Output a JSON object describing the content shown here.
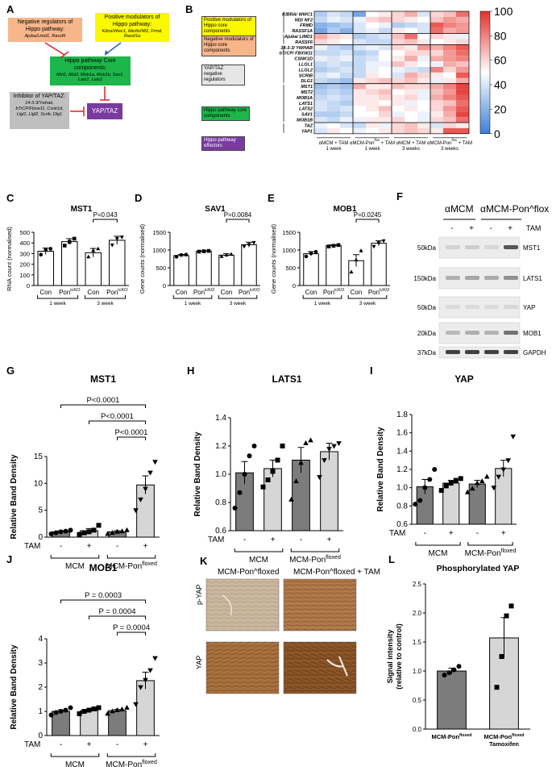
{
  "panels": {
    "A": "A",
    "B": "B",
    "C": "C",
    "D": "D",
    "E": "E",
    "F": "F",
    "G": "G",
    "H": "H",
    "I": "I",
    "J": "J",
    "K": "K",
    "L": "L"
  },
  "colors": {
    "heat_low": "#3b7fd8",
    "heat_mid": "#ffffff",
    "heat_high": "#e4312b",
    "bar_dark": "#7c7c7c",
    "bar_light": "#d6d6d6",
    "yellow": "#fbf900",
    "orange": "#f7b58a",
    "green": "#1cb64a",
    "grey": "#bfbfbf",
    "purple": "#7a3aa0",
    "red_arrow": "#e02020"
  },
  "diagram_a": {
    "neg_reg_title": "Negative regulators of Hippo pathway:",
    "neg_reg_genes": "Ajuba/Limd1, Rassf6",
    "pos_mod_title": "Positive modulators of Hippo pathway:",
    "pos_mod_genes": "Kibra/Wwc1, Merlin/Nf2, Frmd, Rassf1a",
    "core_title": "Hippo pathway Core components:",
    "core_genes": "Mst1, Mst2, Mob1a, Mob1b, Sav1, Lats1, Lats2",
    "inhib_title": "Inhibitor of YAP/TAZ:",
    "inhib_genes": "14-3-3/Ywhab, bTrCP/Fbxw11, Csnk1d, Llgl1, Llgl2, Scrib, Dlg1",
    "yap_taz": "YAP/TAZ"
  },
  "heatmap_b": {
    "genes": [
      "KIBRA/ WWC1",
      "Nf2/ NF2",
      "FRMD",
      "RASSF1A",
      "Ajuba/ LIMD1",
      "RASSF6",
      "14-3-3/ YWHAB",
      "bTrCP/ FBXW11",
      "CSNK1D",
      "LLGL1",
      "LLGL2",
      "SCRIB",
      "DLG1",
      "MST1",
      "MST2",
      "MOB1A",
      "LATS1",
      "LATS2",
      "SAV1",
      "MOB1B",
      "TAZ",
      "YAP1"
    ],
    "group_labels": [
      "Positive modulators of Hippo core components",
      "Negative modulators of Hippo core components",
      "YAP/TAZ negative regulators",
      "Hippo pathway core components",
      "Hippo pathway effectors"
    ],
    "conditions": [
      {
        "line1": "αMCM + TAM",
        "line2": "1 week"
      },
      {
        "line1": "αMCM-Pon^flox + TAM",
        "line2": "1 week"
      },
      {
        "line1": "αMCM + TAM",
        "line2": "3 weeks"
      },
      {
        "line1": "αMCM-Pon^flox + TAM",
        "line2": "3 weeks"
      }
    ],
    "colorbar_ticks": [
      "100",
      "80",
      "60",
      "40",
      "20",
      "0"
    ],
    "values": [
      [
        30,
        40,
        35,
        15,
        50,
        55,
        60,
        70,
        40,
        60,
        65,
        85
      ],
      [
        35,
        45,
        40,
        45,
        60,
        65,
        60,
        55,
        50,
        65,
        75,
        70
      ],
      [
        20,
        25,
        30,
        40,
        50,
        45,
        30,
        35,
        40,
        90,
        80,
        75
      ],
      [
        15,
        30,
        20,
        40,
        45,
        35,
        55,
        50,
        40,
        85,
        70,
        75
      ],
      [
        70,
        60,
        55,
        30,
        35,
        40,
        65,
        85,
        50,
        60,
        55,
        45
      ],
      [
        60,
        55,
        50,
        40,
        35,
        35,
        60,
        65,
        55,
        50,
        55,
        60
      ],
      [
        45,
        35,
        30,
        40,
        45,
        40,
        60,
        55,
        75,
        70,
        80,
        90
      ],
      [
        35,
        35,
        40,
        30,
        35,
        50,
        50,
        60,
        60,
        60,
        75,
        85
      ],
      [
        45,
        40,
        45,
        35,
        40,
        50,
        55,
        70,
        45,
        70,
        75,
        80
      ],
      [
        35,
        40,
        35,
        35,
        45,
        45,
        65,
        55,
        50,
        45,
        70,
        65
      ],
      [
        30,
        35,
        40,
        35,
        45,
        50,
        45,
        40,
        35,
        80,
        60,
        75
      ],
      [
        40,
        45,
        35,
        35,
        55,
        50,
        40,
        70,
        60,
        55,
        50,
        90
      ],
      [
        35,
        30,
        25,
        55,
        60,
        65,
        60,
        65,
        55,
        45,
        55,
        70
      ],
      [
        25,
        30,
        25,
        70,
        55,
        55,
        65,
        60,
        60,
        70,
        80,
        95
      ],
      [
        30,
        35,
        30,
        55,
        60,
        65,
        50,
        55,
        45,
        65,
        75,
        95
      ],
      [
        35,
        40,
        35,
        55,
        55,
        60,
        55,
        60,
        45,
        70,
        80,
        90
      ],
      [
        40,
        35,
        30,
        55,
        55,
        50,
        55,
        45,
        50,
        60,
        65,
        85
      ],
      [
        40,
        35,
        40,
        50,
        55,
        65,
        50,
        55,
        50,
        60,
        75,
        90
      ],
      [
        30,
        30,
        35,
        50,
        50,
        60,
        45,
        50,
        45,
        55,
        70,
        95
      ],
      [
        40,
        35,
        45,
        45,
        55,
        55,
        60,
        50,
        45,
        60,
        65,
        85
      ],
      [
        45,
        50,
        40,
        35,
        55,
        45,
        60,
        65,
        55,
        40,
        60,
        55
      ],
      [
        40,
        55,
        50,
        45,
        50,
        55,
        60,
        65,
        60,
        55,
        90,
        90
      ]
    ]
  },
  "chart_data": [
    {
      "id": "C",
      "type": "bar",
      "title": "MST1",
      "ylabel": "RNA count (normalised)",
      "ylim": [
        0,
        500
      ],
      "yticks": [
        0,
        100,
        200,
        300,
        400,
        500
      ],
      "categories": [
        "Con",
        "Pon^icKO",
        "Con",
        "Pon^icKO"
      ],
      "values": [
        322,
        412,
        308,
        425
      ],
      "errors": [
        30,
        28,
        40,
        38
      ],
      "points": [
        [
          290,
          335,
          345
        ],
        [
          375,
          410,
          440
        ],
        [
          270,
          330,
          345
        ],
        [
          380,
          440,
          455
        ]
      ],
      "markers": [
        "circle",
        "square",
        "triangle",
        "tri-down"
      ],
      "groups": [
        {
          "label": "1 week",
          "from": 0,
          "to": 1
        },
        {
          "label": "3 week",
          "from": 2,
          "to": 3
        }
      ],
      "comparisons": [
        {
          "from": 2,
          "to": 3,
          "label": "P=0.043"
        }
      ]
    },
    {
      "id": "D",
      "type": "bar",
      "title": "SAV1",
      "ylabel": "Gene counts (normalised)",
      "ylim": [
        0,
        1500
      ],
      "yticks": [
        0,
        500,
        1000,
        1500
      ],
      "categories": [
        "Con",
        "Pon^icKO",
        "Con",
        "Pon^icKO"
      ],
      "values": [
        845,
        965,
        855,
        1150
      ],
      "errors": [
        30,
        10,
        40,
        70
      ],
      "points": [
        [
          810,
          860,
          870
        ],
        [
          955,
          965,
          975
        ],
        [
          820,
          860,
          880
        ],
        [
          1100,
          1150,
          1210
        ]
      ],
      "markers": [
        "circle",
        "square",
        "triangle",
        "tri-down"
      ],
      "groups": [
        {
          "label": "1 week",
          "from": 0,
          "to": 1
        },
        {
          "label": "3 week",
          "from": 2,
          "to": 3
        }
      ],
      "comparisons": [
        {
          "from": 2,
          "to": 3,
          "label": "P=0.0084"
        }
      ]
    },
    {
      "id": "E",
      "type": "bar",
      "title": "MOB1",
      "ylabel": "Gene counts (normalised)",
      "ylim": [
        0,
        1500
      ],
      "yticks": [
        0,
        500,
        1000,
        1500
      ],
      "categories": [
        "Con",
        "Pon^icKO",
        "Con",
        "Pon^icKO"
      ],
      "values": [
        895,
        1125,
        700,
        1190
      ],
      "errors": [
        60,
        20,
        170,
        70
      ],
      "points": [
        [
          820,
          910,
          950
        ],
        [
          1100,
          1120,
          1140
        ],
        [
          380,
          720,
          980
        ],
        [
          1100,
          1200,
          1260
        ]
      ],
      "markers": [
        "circle",
        "square",
        "triangle",
        "tri-down"
      ],
      "groups": [
        {
          "label": "1 week",
          "from": 0,
          "to": 1
        },
        {
          "label": "3 week",
          "from": 2,
          "to": 3
        }
      ],
      "comparisons": [
        {
          "from": 2,
          "to": 3,
          "label": "P=0.0245"
        }
      ]
    },
    {
      "id": "G",
      "type": "bar",
      "title": "MST1",
      "ylabel": "Relative Band Density",
      "ylim": [
        0,
        15
      ],
      "yticks": [
        0,
        5,
        10,
        15
      ],
      "categories": [
        "-",
        "+",
        "-",
        "+"
      ],
      "values": [
        1.0,
        1.2,
        1.0,
        9.7
      ],
      "errors": [
        0.2,
        0.4,
        0.2,
        1.7
      ],
      "points": [
        [
          0.6,
          0.8,
          1.0,
          1.1,
          1.3
        ],
        [
          0.5,
          0.8,
          1.0,
          1.3,
          2.2
        ],
        [
          0.6,
          0.8,
          1.0,
          1.1,
          1.3
        ],
        [
          5.0,
          7.0,
          9.0,
          12.0,
          14.0
        ]
      ],
      "markers": [
        "circle",
        "square",
        "triangle",
        "tri-down"
      ],
      "row_label": "TAM",
      "groups": [
        {
          "label": "MCM",
          "from": 0,
          "to": 1
        },
        {
          "label": "MCM-Pon^floxed",
          "from": 2,
          "to": 3
        }
      ],
      "comparisons": [
        {
          "from": 0,
          "to": 3,
          "label": "P<0.0001"
        },
        {
          "from": 1,
          "to": 3,
          "label": "P<0.0001"
        },
        {
          "from": 2,
          "to": 3,
          "label": "P<0.0001"
        }
      ]
    },
    {
      "id": "H",
      "type": "bar",
      "title": "LATS1",
      "ylabel": "Relative Band Density",
      "ylim": [
        0.6,
        1.4
      ],
      "yticks": [
        0.6,
        0.8,
        1.0,
        1.2,
        1.4
      ],
      "categories": [
        "-",
        "+",
        "-",
        "+"
      ],
      "values": [
        1.01,
        1.04,
        1.1,
        1.16
      ],
      "errors": [
        0.08,
        0.06,
        0.09,
        0.06
      ],
      "points": [
        [
          0.76,
          0.87,
          1.0,
          1.13,
          1.2
        ],
        [
          0.91,
          0.96,
          1.02,
          1.1,
          1.2
        ],
        [
          0.82,
          0.95,
          1.08,
          1.22,
          1.24
        ],
        [
          0.98,
          1.1,
          1.18,
          1.2,
          1.22
        ]
      ],
      "markers": [
        "circle",
        "square",
        "triangle",
        "tri-down"
      ],
      "row_label": "TAM",
      "groups": [
        {
          "label": "MCM",
          "from": 0,
          "to": 1
        },
        {
          "label": "MCM-Pon^floxed",
          "from": 2,
          "to": 3
        }
      ],
      "comparisons": []
    },
    {
      "id": "I",
      "type": "bar",
      "title": "YAP",
      "ylabel": "Relative Band Density",
      "ylim": [
        0.6,
        1.8
      ],
      "yticks": [
        0.6,
        0.8,
        1.0,
        1.2,
        1.4,
        1.6,
        1.8
      ],
      "categories": [
        "-",
        "+",
        "-",
        "+"
      ],
      "values": [
        1.01,
        1.05,
        1.04,
        1.21
      ],
      "errors": [
        0.08,
        0.03,
        0.04,
        0.09
      ],
      "points": [
        [
          0.82,
          0.86,
          1.0,
          1.09,
          1.2
        ],
        [
          0.97,
          1.02,
          1.05,
          1.08,
          1.1
        ],
        [
          0.95,
          0.99,
          1.05,
          1.07,
          1.12
        ],
        [
          1.0,
          1.12,
          1.2,
          1.3,
          1.56
        ]
      ],
      "markers": [
        "circle",
        "square",
        "triangle",
        "tri-down"
      ],
      "row_label": "TAM",
      "groups": [
        {
          "label": "MCM",
          "from": 0,
          "to": 1
        },
        {
          "label": "MCM-Pon^floxed",
          "from": 2,
          "to": 3
        }
      ],
      "comparisons": []
    },
    {
      "id": "J",
      "type": "bar",
      "title": "MOB1",
      "ylabel": "Relative Band Density",
      "ylim": [
        0,
        4
      ],
      "yticks": [
        0,
        1,
        2,
        3,
        4
      ],
      "categories": [
        "-",
        "+",
        "-",
        "+"
      ],
      "values": [
        1.0,
        1.03,
        1.03,
        2.27
      ],
      "errors": [
        0.06,
        0.05,
        0.05,
        0.35
      ],
      "points": [
        [
          0.85,
          0.95,
          1.0,
          1.05,
          1.15
        ],
        [
          0.9,
          1.0,
          1.05,
          1.1,
          1.15
        ],
        [
          0.9,
          1.0,
          1.05,
          1.08,
          1.15
        ],
        [
          1.3,
          2.0,
          2.3,
          2.7,
          3.2
        ]
      ],
      "markers": [
        "circle",
        "square",
        "triangle",
        "tri-down"
      ],
      "row_label": "TAM",
      "groups": [
        {
          "label": "MCM",
          "from": 0,
          "to": 1
        },
        {
          "label": "MCM-Pon^floxed",
          "from": 2,
          "to": 3
        }
      ],
      "comparisons": [
        {
          "from": 0,
          "to": 3,
          "label": "P = 0.0003"
        },
        {
          "from": 1,
          "to": 3,
          "label": "P = 0.0004"
        },
        {
          "from": 2,
          "to": 3,
          "label": "P = 0.0004"
        }
      ]
    },
    {
      "id": "L",
      "type": "bar",
      "title": "Phosphorylated YAP",
      "ylabel": "Signal intensity (relative to control)",
      "ylim": [
        0,
        2.5
      ],
      "yticks": [
        0.0,
        0.5,
        1.0,
        1.5,
        2.0,
        2.5
      ],
      "categories": [
        "MCM-Pon^floxed",
        "MCM-Pon^floxed Tamoxifen"
      ],
      "values": [
        1.0,
        1.57
      ],
      "errors": [
        0.05,
        0.35
      ],
      "points": [
        [
          0.93,
          0.97,
          1.02,
          1.08
        ],
        [
          0.72,
          1.25,
          1.95,
          2.12
        ]
      ],
      "markers": [
        "circle",
        "square"
      ],
      "groups": [],
      "comparisons": []
    }
  ],
  "western_f": {
    "group1": "αMCM",
    "group2": "αMCM-Pon^flox",
    "tam_label": "TAM",
    "tam_signs": [
      "-",
      "+",
      "-",
      "+"
    ],
    "blots": [
      {
        "name": "MST1",
        "kda": "50kDa",
        "intensity": [
          0.12,
          0.15,
          0.1,
          0.75
        ]
      },
      {
        "name": "LATS1",
        "kda": "150kDa",
        "intensity": [
          0.3,
          0.35,
          0.32,
          0.45
        ]
      },
      {
        "name": "YAP",
        "kda": "50kDa",
        "intensity": [
          0.08,
          0.08,
          0.08,
          0.1
        ]
      },
      {
        "name": "MOB1",
        "kda": "20kDa",
        "intensity": [
          0.25,
          0.3,
          0.28,
          0.6
        ]
      },
      {
        "name": "GAPDH",
        "kda": "37kDa",
        "intensity": [
          0.85,
          0.85,
          0.85,
          0.85
        ]
      }
    ]
  },
  "micrographs_k": {
    "col1": "MCM-Pon^floxed",
    "col2": "MCM-Pon^floxed + TAM",
    "row1": "p-YAP",
    "row2": "YAP"
  }
}
